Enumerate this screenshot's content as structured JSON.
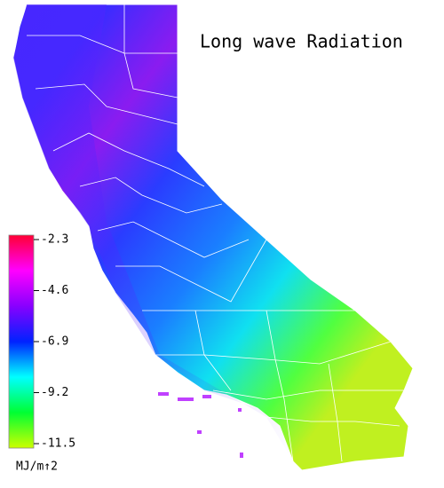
{
  "title": "Long wave Radiation",
  "colorbar": {
    "label": "MJ/m↑2",
    "lim": [
      -2.3,
      -11.5
    ],
    "ticks": [
      -2.3,
      -4.6,
      -6.9,
      -9.2,
      -11.5
    ],
    "colors": [
      "#ff0033",
      "#ff00ff",
      "#8800ff",
      "#0022ff",
      "#00ffff",
      "#00ff33",
      "#ccff00"
    ]
  }
}
